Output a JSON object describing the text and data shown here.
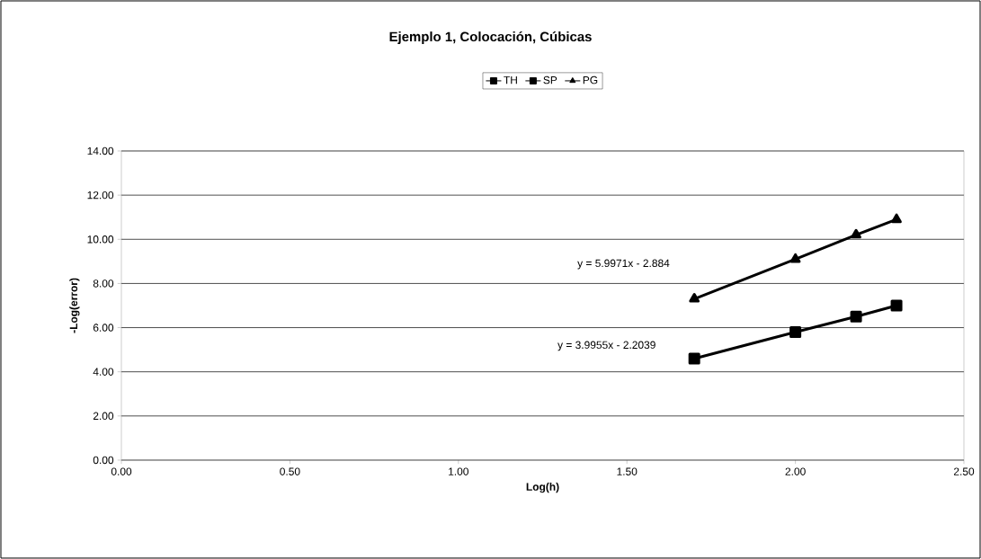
{
  "chart_data": {
    "type": "line",
    "title": "Ejemplo 1, Colocación, Cúbicas",
    "xlabel": "Log(h)",
    "ylabel": "-Log(error)",
    "x": [
      1.7,
      2.0,
      2.18,
      2.3
    ],
    "series": [
      {
        "name": "TH",
        "color": "#000000",
        "marker": "square",
        "values": [
          null,
          null,
          null,
          null
        ]
      },
      {
        "name": "SP",
        "color": "#000000",
        "marker": "square",
        "values": [
          4.6,
          5.8,
          6.5,
          7.0
        ]
      },
      {
        "name": "PG",
        "color": "#000000",
        "marker": "triangle",
        "values": [
          7.3,
          9.1,
          10.2,
          10.9
        ]
      }
    ],
    "annotations": [
      "y = 5.9971x - 2.884",
      "y = 3.9955x - 2.2039"
    ],
    "xlim": [
      0,
      2.5
    ],
    "ylim": [
      0,
      14
    ],
    "xticks": [
      {
        "value": 0,
        "label": "0.00"
      },
      {
        "value": 0.5,
        "label": "0.50"
      },
      {
        "value": 1,
        "label": "1.00"
      },
      {
        "value": 1.5,
        "label": "1.50"
      },
      {
        "value": 2,
        "label": "2.00"
      },
      {
        "value": 2.5,
        "label": "2.50"
      }
    ],
    "yticks": [
      {
        "value": 0,
        "label": "0.00"
      },
      {
        "value": 2,
        "label": "2.00"
      },
      {
        "value": 4,
        "label": "4.00"
      },
      {
        "value": 6,
        "label": "6.00"
      },
      {
        "value": 8,
        "label": "8.00"
      },
      {
        "value": 10,
        "label": "10.00"
      },
      {
        "value": 12,
        "label": "12.00"
      },
      {
        "value": 14,
        "label": "14.00"
      }
    ],
    "grid": "y",
    "legend": "top",
    "line_style": "solid"
  }
}
